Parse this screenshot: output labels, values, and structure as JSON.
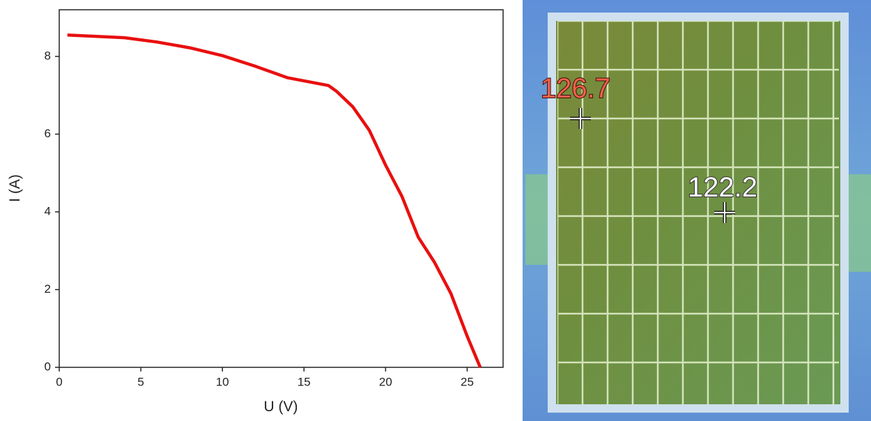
{
  "chart_data": {
    "type": "line",
    "x_label": "U (V)",
    "y_label": "I (A)",
    "x": [
      0.5,
      2,
      4,
      6,
      8,
      10,
      12,
      14,
      16.5,
      17,
      18,
      19,
      20,
      21,
      22,
      23,
      24,
      25,
      25.8
    ],
    "values": [
      8.55,
      8.52,
      8.48,
      8.37,
      8.22,
      8.02,
      7.75,
      7.45,
      7.25,
      7.1,
      6.7,
      6.1,
      5.2,
      4.4,
      3.35,
      2.7,
      1.9,
      0.8,
      0
    ],
    "color": "#e8100f",
    "xlim": [
      0,
      27.2
    ],
    "ylim": [
      0,
      9.2
    ],
    "xticks": [
      0,
      5,
      10,
      15,
      20,
      25
    ],
    "yticks": [
      0,
      2,
      4,
      6,
      8
    ]
  },
  "thermal_image": {
    "labels": [
      "126.7",
      "122.2"
    ]
  }
}
